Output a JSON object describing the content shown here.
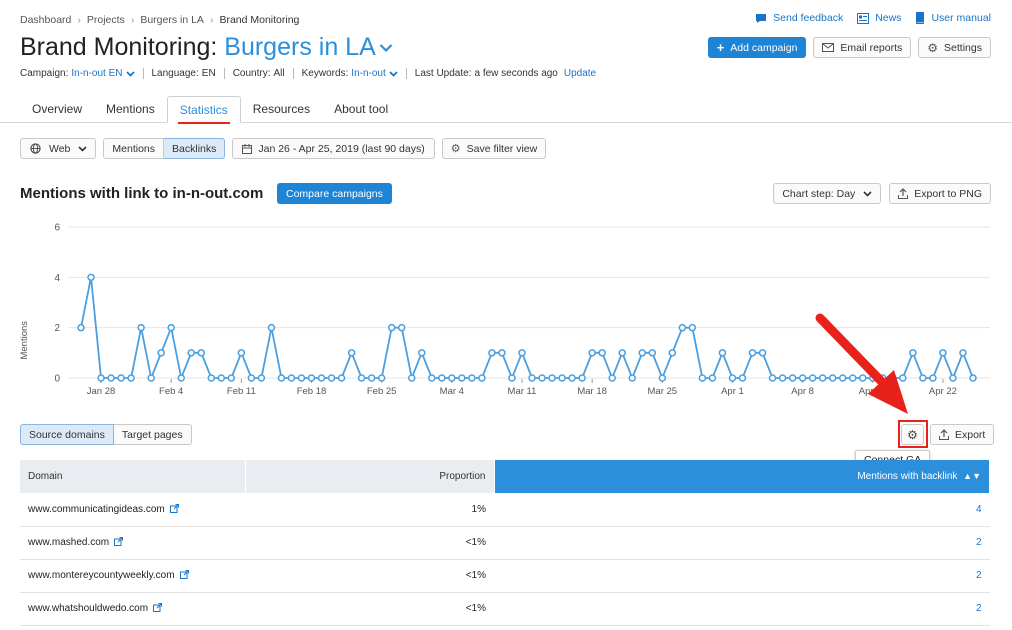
{
  "breadcrumb": [
    "Dashboard",
    "Projects",
    "Burgers in LA",
    "Brand Monitoring"
  ],
  "top_links": {
    "feedback": "Send feedback",
    "news": "News",
    "manual": "User manual"
  },
  "title": {
    "tool": "Brand Monitoring:",
    "project": "Burgers in LA"
  },
  "actions": {
    "add_campaign": "Add campaign",
    "email_reports": "Email reports",
    "settings": "Settings"
  },
  "meta": {
    "campaign_label": "Campaign:",
    "campaign_value": "In-n-out EN",
    "language_label": "Language:",
    "language_value": "EN",
    "country_label": "Country:",
    "country_value": "All",
    "keywords_label": "Keywords:",
    "keywords_value": "In-n-out",
    "last_update_label": "Last Update:",
    "last_update_value": "a few seconds ago",
    "update_link": "Update"
  },
  "tabs": [
    {
      "label": "Overview",
      "active": false
    },
    {
      "label": "Mentions",
      "active": false
    },
    {
      "label": "Statistics",
      "active": true
    },
    {
      "label": "Resources",
      "active": false
    },
    {
      "label": "About tool",
      "active": false
    }
  ],
  "filters": {
    "source": "Web",
    "mentions": "Mentions",
    "backlinks": "Backlinks",
    "date_range": "Jan 26 - Apr 25, 2019 (last 90 days)",
    "save_view": "Save filter view"
  },
  "chart_header": {
    "title": "Mentions with link to in-n-out.com",
    "compare": "Compare campaigns",
    "chart_step": "Chart step: Day",
    "export_png": "Export to PNG"
  },
  "chart_data": {
    "type": "line",
    "ylabel": "Mentions",
    "ylim": [
      0,
      6
    ],
    "yticks": [
      0,
      2,
      4,
      6
    ],
    "xtick_labels": [
      "Jan 28",
      "Feb 4",
      "Feb 11",
      "Feb 18",
      "Feb 25",
      "Mar 4",
      "Mar 11",
      "Mar 18",
      "Mar 25",
      "Apr 1",
      "Apr 8",
      "Apr 15",
      "Apr 22"
    ],
    "x_start_label": "Jan 26",
    "color": "#4a9fe0",
    "values": [
      2,
      4,
      0,
      0,
      0,
      0,
      2,
      0,
      1,
      2,
      0,
      1,
      1,
      0,
      0,
      0,
      1,
      0,
      0,
      2,
      0,
      0,
      0,
      0,
      0,
      0,
      0,
      1,
      0,
      0,
      0,
      2,
      2,
      0,
      1,
      0,
      0,
      0,
      0,
      0,
      0,
      1,
      1,
      0,
      1,
      0,
      0,
      0,
      0,
      0,
      0,
      1,
      1,
      0,
      1,
      0,
      1,
      1,
      0,
      1,
      2,
      2,
      0,
      0,
      1,
      0,
      0,
      1,
      1,
      0,
      0,
      0,
      0,
      0,
      0,
      0,
      0,
      0,
      0,
      0,
      0,
      0,
      0,
      1,
      0,
      0,
      1,
      0,
      1,
      0
    ]
  },
  "lower": {
    "source_domains": "Source domains",
    "target_pages": "Target pages",
    "export": "Export",
    "tooltip": "Connect GA"
  },
  "table": {
    "headers": {
      "domain": "Domain",
      "proportion": "Proportion",
      "mentions": "Mentions with backlink"
    },
    "rows": [
      {
        "domain": "www.communicatingideas.com",
        "proportion": "1%",
        "mentions": "4"
      },
      {
        "domain": "www.mashed.com",
        "proportion": "<1%",
        "mentions": "2"
      },
      {
        "domain": "www.montereycountyweekly.com",
        "proportion": "<1%",
        "mentions": "2"
      },
      {
        "domain": "www.whatshouldwedo.com",
        "proportion": "<1%",
        "mentions": "2"
      }
    ]
  },
  "colors": {
    "accent": "#2b8fdc",
    "primary_button": "#1d84d6",
    "highlight_red": "#e8221b",
    "series": "#4a9fe0"
  }
}
